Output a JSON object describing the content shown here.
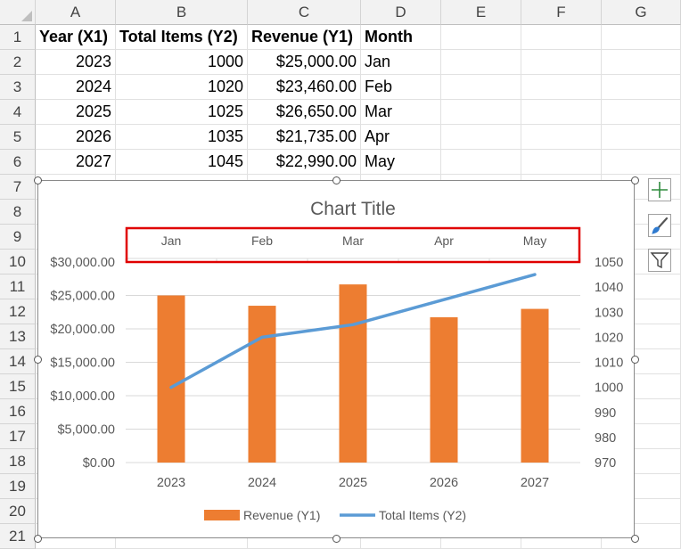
{
  "columns": [
    "A",
    "B",
    "C",
    "D",
    "E",
    "F",
    "G"
  ],
  "rows": [
    "1",
    "2",
    "3",
    "4",
    "5",
    "6",
    "7",
    "8",
    "9",
    "10",
    "11",
    "12",
    "13",
    "14",
    "15",
    "16",
    "17",
    "18",
    "19",
    "20",
    "21"
  ],
  "sheet": {
    "headers": [
      "Year (X1)",
      "Total Items (Y2)",
      "Revenue (Y1)",
      "Month"
    ],
    "data": [
      [
        "2023",
        "1000",
        "$25,000.00",
        "Jan"
      ],
      [
        "2024",
        "1020",
        "$23,460.00",
        "Feb"
      ],
      [
        "2025",
        "1025",
        "$26,650.00",
        "Mar"
      ],
      [
        "2026",
        "1035",
        "$21,735.00",
        "Apr"
      ],
      [
        "2027",
        "1045",
        "$22,990.00",
        "May"
      ]
    ]
  },
  "chart_buttons": {
    "elements": "chart-elements-icon",
    "styles": "chart-styles-icon",
    "filters": "chart-filters-icon"
  },
  "chart_data": {
    "type": "bar",
    "title": "Chart Title",
    "categories": [
      "2023",
      "2024",
      "2025",
      "2026",
      "2027"
    ],
    "secondary_categories": [
      "Jan",
      "Feb",
      "Mar",
      "Apr",
      "May"
    ],
    "series": [
      {
        "name": "Revenue (Y1)",
        "type": "bar",
        "axis": "primary",
        "color": "#ED7D31",
        "values": [
          25000,
          23460,
          26650,
          21735,
          22990
        ]
      },
      {
        "name": "Total Items (Y2)",
        "type": "line",
        "axis": "secondary",
        "color": "#5B9BD5",
        "values": [
          1000,
          1020,
          1025,
          1035,
          1045
        ]
      }
    ],
    "y_left": {
      "ylim": [
        0,
        30000
      ],
      "ticks": [
        "$0.00",
        "$5,000.00",
        "$10,000.00",
        "$15,000.00",
        "$20,000.00",
        "$25,000.00",
        "$30,000.00"
      ]
    },
    "y_right": {
      "ylim": [
        970,
        1050
      ],
      "ticks": [
        "970",
        "980",
        "990",
        "1000",
        "1010",
        "1020",
        "1030",
        "1040",
        "1050"
      ]
    },
    "legend": "bottom",
    "highlight_color": "#E00000"
  }
}
